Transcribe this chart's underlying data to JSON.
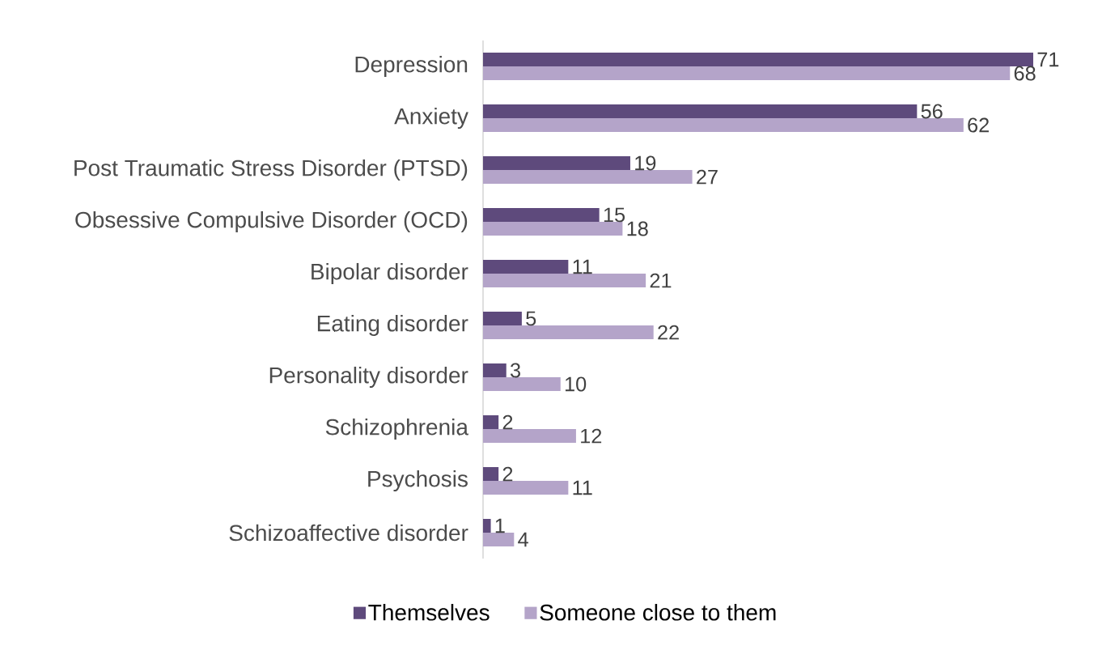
{
  "chart_data": {
    "type": "bar",
    "orientation": "horizontal",
    "categories": [
      "Depression",
      "Anxiety",
      "Post Traumatic Stress Disorder (PTSD)",
      "Obsessive Compulsive Disorder (OCD)",
      "Bipolar disorder",
      "Eating disorder",
      "Personality disorder",
      "Schizophrenia",
      "Psychosis",
      "Schizoaffective disorder"
    ],
    "series": [
      {
        "name": "Themselves",
        "color": "#5e4a7c",
        "values": [
          71,
          56,
          19,
          15,
          11,
          5,
          3,
          2,
          2,
          1
        ]
      },
      {
        "name": "Someone close to them",
        "color": "#b4a4c9",
        "values": [
          68,
          62,
          27,
          18,
          21,
          22,
          10,
          12,
          11,
          4
        ]
      }
    ],
    "data_labels": true,
    "legend": "bottom"
  }
}
